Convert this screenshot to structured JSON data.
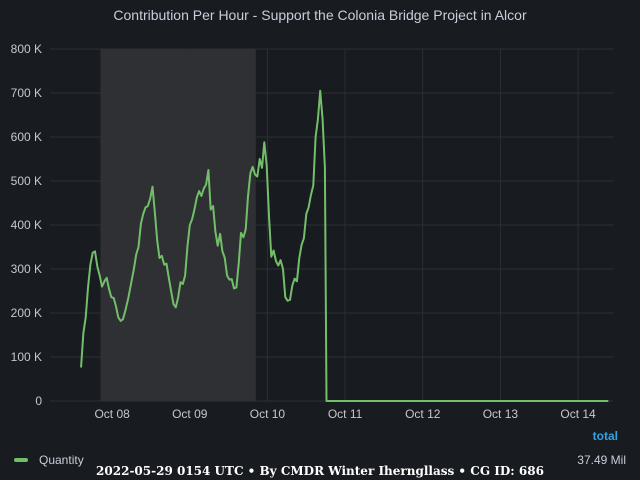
{
  "chart_title": "Contribution Per Hour - Support the Colonia Bridge Project in Alcor",
  "footer": "2022-05-29 0154 UTC • By CMDR Winter Iherngllass • CG ID: 686",
  "legend": {
    "header": "total",
    "series_name": "Quantity",
    "series_total": "37.49 Mil",
    "series_color": "#73bf69"
  },
  "colors": {
    "background": "#181b1f",
    "grid": "#2c2f34",
    "highlight_band": "#2e3034",
    "line": "#73bf69",
    "legend_header": "#33a2e5"
  },
  "chart_data": {
    "type": "line",
    "title": "Contribution Per Hour - Support the Colonia Bridge Project in Alcor",
    "xlabel": "",
    "ylabel": "",
    "x_unit": "days since Oct 08 00:00",
    "x_range": [
      -0.8,
      6.45
    ],
    "ylim": [
      0,
      800000
    ],
    "grid": true,
    "legend_position": "bottom-left",
    "highlight_region": [
      -0.15,
      1.85
    ],
    "x_ticks": [
      {
        "x": 0,
        "label": "Oct 08"
      },
      {
        "x": 1,
        "label": "Oct 09"
      },
      {
        "x": 2,
        "label": "Oct 10"
      },
      {
        "x": 3,
        "label": "Oct 11"
      },
      {
        "x": 4,
        "label": "Oct 12"
      },
      {
        "x": 5,
        "label": "Oct 13"
      },
      {
        "x": 6,
        "label": "Oct 14"
      }
    ],
    "y_ticks": [
      {
        "y": 0,
        "label": "0"
      },
      {
        "y": 100000,
        "label": "100 K"
      },
      {
        "y": 200000,
        "label": "200 K"
      },
      {
        "y": 300000,
        "label": "300 K"
      },
      {
        "y": 400000,
        "label": "400 K"
      },
      {
        "y": 500000,
        "label": "500 K"
      },
      {
        "y": 600000,
        "label": "600 K"
      },
      {
        "y": 700000,
        "label": "700 K"
      },
      {
        "y": 800000,
        "label": "800 K"
      }
    ],
    "series": [
      {
        "name": "Quantity",
        "points": [
          [
            -0.4,
            78000
          ],
          [
            -0.37,
            155000
          ],
          [
            -0.34,
            190000
          ],
          [
            -0.31,
            260000
          ],
          [
            -0.28,
            310000
          ],
          [
            -0.25,
            337000
          ],
          [
            -0.22,
            340000
          ],
          [
            -0.19,
            305000
          ],
          [
            -0.16,
            285000
          ],
          [
            -0.13,
            260000
          ],
          [
            -0.1,
            272000
          ],
          [
            -0.07,
            280000
          ],
          [
            -0.04,
            255000
          ],
          [
            -0.01,
            236000
          ],
          [
            0.02,
            234000
          ],
          [
            0.05,
            215000
          ],
          [
            0.08,
            190000
          ],
          [
            0.11,
            182000
          ],
          [
            0.14,
            186000
          ],
          [
            0.17,
            205000
          ],
          [
            0.21,
            235000
          ],
          [
            0.25,
            272000
          ],
          [
            0.28,
            300000
          ],
          [
            0.31,
            333000
          ],
          [
            0.34,
            350000
          ],
          [
            0.37,
            403000
          ],
          [
            0.4,
            425000
          ],
          [
            0.43,
            440000
          ],
          [
            0.46,
            443000
          ],
          [
            0.49,
            460000
          ],
          [
            0.52,
            487000
          ],
          [
            0.55,
            430000
          ],
          [
            0.58,
            365000
          ],
          [
            0.61,
            325000
          ],
          [
            0.64,
            330000
          ],
          [
            0.67,
            310000
          ],
          [
            0.7,
            312000
          ],
          [
            0.73,
            280000
          ],
          [
            0.76,
            250000
          ],
          [
            0.79,
            220000
          ],
          [
            0.82,
            213000
          ],
          [
            0.85,
            235000
          ],
          [
            0.88,
            270000
          ],
          [
            0.91,
            266000
          ],
          [
            0.94,
            285000
          ],
          [
            0.97,
            350000
          ],
          [
            1.0,
            400000
          ],
          [
            1.03,
            413000
          ],
          [
            1.06,
            435000
          ],
          [
            1.09,
            462000
          ],
          [
            1.12,
            477000
          ],
          [
            1.15,
            466000
          ],
          [
            1.18,
            483000
          ],
          [
            1.21,
            492000
          ],
          [
            1.24,
            525000
          ],
          [
            1.27,
            435000
          ],
          [
            1.3,
            443000
          ],
          [
            1.33,
            385000
          ],
          [
            1.36,
            353000
          ],
          [
            1.39,
            380000
          ],
          [
            1.42,
            340000
          ],
          [
            1.45,
            326000
          ],
          [
            1.48,
            285000
          ],
          [
            1.51,
            276000
          ],
          [
            1.54,
            277000
          ],
          [
            1.57,
            256000
          ],
          [
            1.6,
            258000
          ],
          [
            1.63,
            312000
          ],
          [
            1.66,
            382000
          ],
          [
            1.69,
            372000
          ],
          [
            1.72,
            390000
          ],
          [
            1.75,
            465000
          ],
          [
            1.78,
            518000
          ],
          [
            1.81,
            532000
          ],
          [
            1.84,
            515000
          ],
          [
            1.87,
            510000
          ],
          [
            1.9,
            550000
          ],
          [
            1.93,
            530000
          ],
          [
            1.96,
            588000
          ],
          [
            1.99,
            535000
          ],
          [
            2.02,
            420000
          ],
          [
            2.05,
            328000
          ],
          [
            2.08,
            342000
          ],
          [
            2.11,
            318000
          ],
          [
            2.14,
            308000
          ],
          [
            2.17,
            320000
          ],
          [
            2.2,
            300000
          ],
          [
            2.23,
            236000
          ],
          [
            2.26,
            228000
          ],
          [
            2.29,
            230000
          ],
          [
            2.32,
            262000
          ],
          [
            2.35,
            278000
          ],
          [
            2.38,
            272000
          ],
          [
            2.41,
            325000
          ],
          [
            2.44,
            355000
          ],
          [
            2.47,
            370000
          ],
          [
            2.5,
            425000
          ],
          [
            2.53,
            440000
          ],
          [
            2.56,
            468000
          ],
          [
            2.59,
            490000
          ],
          [
            2.62,
            600000
          ],
          [
            2.65,
            640000
          ],
          [
            2.68,
            705000
          ],
          [
            2.71,
            640000
          ],
          [
            2.74,
            530000
          ],
          [
            2.76,
            0
          ],
          [
            6.38,
            0
          ]
        ]
      }
    ]
  }
}
